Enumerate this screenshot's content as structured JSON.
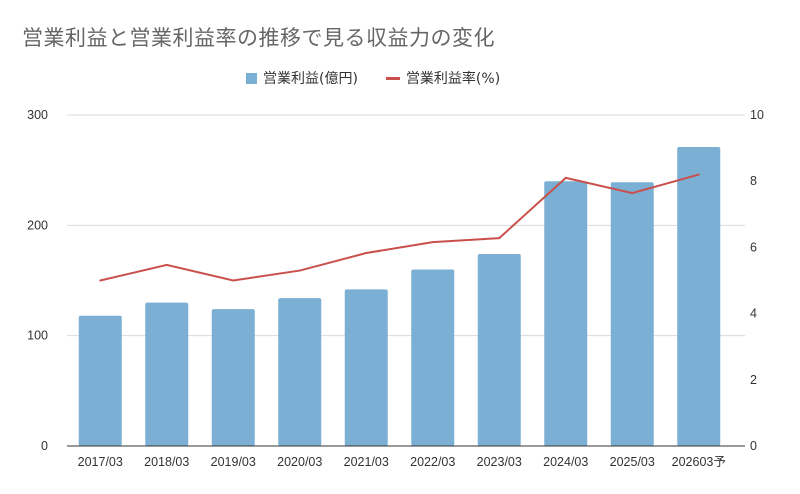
{
  "chart_data": {
    "type": "bar",
    "title": "営業利益と営業利益率の推移で見る収益力の変化",
    "categories": [
      "2017/03",
      "2018/03",
      "2019/03",
      "2020/03",
      "2021/03",
      "2022/03",
      "2023/03",
      "2024/03",
      "2025/03",
      "202603予"
    ],
    "series": [
      {
        "name": "営業利益(億円)",
        "type": "bar",
        "axis": "left",
        "color": "#7bafd4",
        "values": [
          118,
          130,
          124,
          134,
          142,
          160,
          174,
          240,
          239,
          271
        ]
      },
      {
        "name": "営業利益率(%)",
        "type": "line",
        "axis": "right",
        "color": "#c9504c",
        "values": [
          5.0,
          5.47,
          5.0,
          5.3,
          5.83,
          6.16,
          6.28,
          8.1,
          7.64,
          8.2
        ]
      }
    ],
    "y_left": {
      "range": [
        0,
        300
      ],
      "ticks": [
        "0",
        "100",
        "200",
        "300"
      ]
    },
    "y_right": {
      "range": [
        0,
        10
      ],
      "ticks": [
        "0",
        "2",
        "4",
        "6",
        "8",
        "10"
      ]
    },
    "grid": true,
    "legend": "top-center"
  }
}
